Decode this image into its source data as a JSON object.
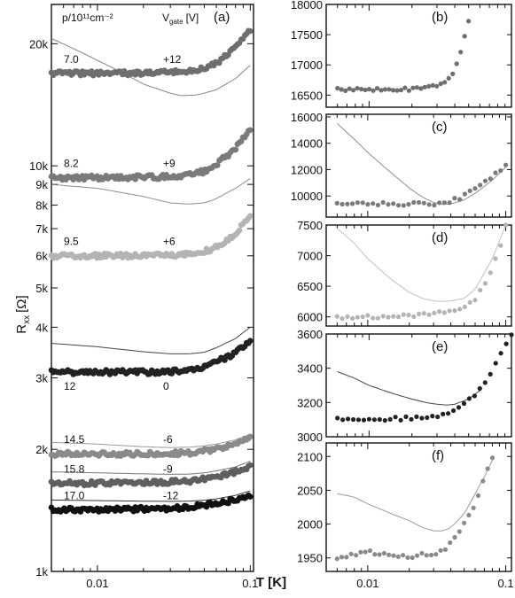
{
  "figure": {
    "ylabel": "R",
    "ylabel_sub": "xx",
    "ylabel_unit": "[Ω]",
    "xlabel": "T [K]",
    "header_density": "p/10¹¹cm⁻²",
    "header_voltage": "V",
    "header_voltage_sub": "gate",
    "header_voltage_unit": "[V]"
  },
  "chart_data": [
    {
      "panel": "(a)",
      "type": "scatter",
      "xscale": "log",
      "yscale": "log",
      "xlim": [
        0.005,
        0.105
      ],
      "ylim": [
        1000,
        25000
      ],
      "x_ticks": [
        0.01,
        0.1
      ],
      "x_tick_labels": [
        "0.01",
        "0.1"
      ],
      "y_ticks": [
        1000,
        2000,
        3000,
        4000,
        5000,
        6000,
        7000,
        8000,
        9000,
        10000,
        20000
      ],
      "y_tick_labels": [
        "1k",
        "2k",
        "3k",
        "4k",
        "5k",
        "6k",
        "7k",
        "8k",
        "9k",
        "10k",
        "20k"
      ],
      "series": [
        {
          "density": "7.0",
          "vgate": "+12",
          "color": "#6e6e6e",
          "measured": {
            "x": [
              0.005,
              0.01,
              0.02,
              0.03,
              0.04,
              0.05,
              0.06,
              0.08,
              0.1
            ],
            "y": [
              16900,
              16900,
              16950,
              17000,
              17100,
              17400,
              17900,
              19500,
              21500
            ]
          },
          "theory": {
            "x": [
              0.005,
              0.01,
              0.02,
              0.03,
              0.035,
              0.045,
              0.06,
              0.08,
              0.1
            ],
            "y": [
              20600,
              18200,
              15900,
              15100,
              14900,
              14950,
              15400,
              16400,
              17700
            ]
          }
        },
        {
          "density": "8.2",
          "vgate": "+9",
          "color": "#7a7a7a",
          "measured": {
            "x": [
              0.005,
              0.01,
              0.02,
              0.03,
              0.04,
              0.05,
              0.06,
              0.08,
              0.1
            ],
            "y": [
              9350,
              9350,
              9380,
              9400,
              9500,
              9700,
              10100,
              11000,
              12400
            ]
          },
          "theory": {
            "x": [
              0.005,
              0.01,
              0.02,
              0.03,
              0.04,
              0.05,
              0.06,
              0.08,
              0.1
            ],
            "y": [
              9000,
              8800,
              8400,
              8100,
              8050,
              8100,
              8300,
              8800,
              9300
            ]
          }
        },
        {
          "density": "9.5",
          "vgate": "+6",
          "color": "#b4b4b4",
          "measured": {
            "x": [
              0.005,
              0.01,
              0.02,
              0.03,
              0.04,
              0.05,
              0.06,
              0.08,
              0.1
            ],
            "y": [
              6000,
              6000,
              6010,
              6030,
              6060,
              6150,
              6300,
              6800,
              7500
            ]
          }
        },
        {
          "density": "12",
          "vgate": "0",
          "color": "#222222",
          "measured": {
            "x": [
              0.005,
              0.01,
              0.02,
              0.03,
              0.04,
              0.05,
              0.06,
              0.08,
              0.1
            ],
            "y": [
              3100,
              3100,
              3100,
              3110,
              3150,
              3200,
              3280,
              3450,
              3700
            ]
          },
          "theory": {
            "x": [
              0.005,
              0.01,
              0.02,
              0.03,
              0.04,
              0.05,
              0.06,
              0.08,
              0.1
            ],
            "y": [
              3650,
              3580,
              3480,
              3440,
              3440,
              3470,
              3560,
              3750,
              4000
            ]
          }
        },
        {
          "density": "14.5",
          "vgate": "-6",
          "color": "#8a8a8a",
          "measured": {
            "x": [
              0.005,
              0.01,
              0.02,
              0.03,
              0.04,
              0.05,
              0.06,
              0.08,
              0.1
            ],
            "y": [
              1950,
              1950,
              1950,
              1955,
              1960,
              1980,
              2000,
              2060,
              2130
            ]
          },
          "theory": {
            "x": [
              0.005,
              0.01,
              0.02,
              0.03,
              0.04,
              0.05,
              0.06,
              0.08,
              0.1
            ],
            "y": [
              2080,
              2060,
              2030,
              2020,
              2025,
              2040,
              2060,
              2110,
              2180
            ]
          }
        },
        {
          "density": "15.8",
          "vgate": "-9",
          "color": "#5f5f5f",
          "measured": {
            "x": [
              0.005,
              0.01,
              0.02,
              0.03,
              0.04,
              0.05,
              0.06,
              0.08,
              0.1
            ],
            "y": [
              1650,
              1650,
              1655,
              1660,
              1670,
              1690,
              1710,
              1760,
              1820
            ]
          },
          "theory": {
            "x": [
              0.005,
              0.01,
              0.02,
              0.03,
              0.04,
              0.05,
              0.06,
              0.08,
              0.1
            ],
            "y": [
              1760,
              1750,
              1740,
              1735,
              1738,
              1750,
              1770,
              1810,
              1870
            ]
          }
        },
        {
          "density": "17.0",
          "vgate": "-12",
          "color": "#111111",
          "measured": {
            "x": [
              0.005,
              0.01,
              0.02,
              0.03,
              0.04,
              0.05,
              0.06,
              0.08,
              0.1
            ],
            "y": [
              1420,
              1420,
              1425,
              1430,
              1440,
              1455,
              1470,
              1500,
              1540
            ]
          },
          "theory": {
            "x": [
              0.005,
              0.01,
              0.02,
              0.03,
              0.04,
              0.05,
              0.06,
              0.08,
              0.1
            ],
            "y": [
              1500,
              1495,
              1490,
              1488,
              1490,
              1498,
              1510,
              1540,
              1580
            ]
          }
        }
      ]
    },
    {
      "panel": "(b)",
      "type": "scatter",
      "xscale": "log",
      "xlim": [
        0.005,
        0.1
      ],
      "ylim": [
        16300,
        18000
      ],
      "y_ticks": [
        16500,
        17000,
        17500,
        18000
      ],
      "y_tick_labels": [
        "16500",
        "17000",
        "17500",
        "18000"
      ],
      "measured": {
        "color": "#6e6e6e",
        "x": [
          0.006,
          0.008,
          0.01,
          0.015,
          0.02,
          0.025,
          0.03,
          0.035,
          0.04,
          0.045,
          0.05
        ],
        "y": [
          16600,
          16590,
          16600,
          16580,
          16600,
          16620,
          16650,
          16700,
          16900,
          17300,
          17750
        ]
      }
    },
    {
      "panel": "(c)",
      "type": "scatter",
      "xscale": "log",
      "xlim": [
        0.005,
        0.11
      ],
      "ylim": [
        8400,
        16200
      ],
      "y_ticks": [
        10000,
        12000,
        14000,
        16000
      ],
      "y_tick_labels": [
        "10000",
        "12000",
        "14000",
        "16000"
      ],
      "measured": {
        "color": "#7a7a7a",
        "x": [
          0.006,
          0.008,
          0.01,
          0.015,
          0.02,
          0.03,
          0.04,
          0.05,
          0.06,
          0.08,
          0.1
        ],
        "y": [
          9400,
          9400,
          9400,
          9400,
          9400,
          9420,
          9600,
          10000,
          10500,
          11500,
          12400
        ]
      },
      "theory": {
        "x": [
          0.006,
          0.008,
          0.01,
          0.015,
          0.02,
          0.025,
          0.03,
          0.035,
          0.04,
          0.05,
          0.06,
          0.08,
          0.1
        ],
        "y": [
          15500,
          14300,
          13300,
          11700,
          10600,
          9900,
          9500,
          9350,
          9400,
          9700,
          10200,
          11200,
          12200
        ]
      }
    },
    {
      "panel": "(d)",
      "type": "scatter",
      "xscale": "log",
      "xlim": [
        0.005,
        0.11
      ],
      "ylim": [
        5850,
        7500
      ],
      "y_ticks": [
        6000,
        6500,
        7000,
        7500
      ],
      "y_tick_labels": [
        "6000",
        "6500",
        "7000",
        "7500"
      ],
      "measured": {
        "color": "#b4b4b4",
        "x": [
          0.006,
          0.008,
          0.01,
          0.015,
          0.02,
          0.025,
          0.03,
          0.035,
          0.04,
          0.05,
          0.06,
          0.07,
          0.08,
          0.09,
          0.1
        ],
        "y": [
          6000,
          6000,
          6000,
          6010,
          6020,
          6040,
          6060,
          6080,
          6100,
          6170,
          6300,
          6500,
          6800,
          7100,
          7500
        ]
      },
      "theory": {
        "x": [
          0.006,
          0.008,
          0.01,
          0.015,
          0.02,
          0.025,
          0.03,
          0.035,
          0.04,
          0.05,
          0.06,
          0.08,
          0.1
        ],
        "y": [
          7450,
          7200,
          6950,
          6600,
          6400,
          6300,
          6260,
          6250,
          6260,
          6300,
          6450,
          6950,
          7500
        ]
      }
    },
    {
      "panel": "(e)",
      "type": "scatter",
      "xscale": "log",
      "xlim": [
        0.005,
        0.1
      ],
      "ylim": [
        3000,
        3600
      ],
      "y_ticks": [
        3000,
        3200,
        3400,
        3600
      ],
      "y_tick_labels": [
        "3000",
        "3200",
        "3400",
        "3600"
      ],
      "measured": {
        "color": "#222222",
        "x": [
          0.006,
          0.008,
          0.01,
          0.015,
          0.02,
          0.025,
          0.03,
          0.035,
          0.04,
          0.05,
          0.06,
          0.07,
          0.08,
          0.09,
          0.1
        ],
        "y": [
          3100,
          3100,
          3100,
          3105,
          3110,
          3115,
          3125,
          3140,
          3160,
          3210,
          3280,
          3360,
          3450,
          3520,
          3600
        ]
      },
      "theory": {
        "x": [
          0.006,
          0.008,
          0.01,
          0.015,
          0.02,
          0.025,
          0.03,
          0.035,
          0.04,
          0.05,
          0.06
        ],
        "y": [
          3380,
          3340,
          3300,
          3250,
          3220,
          3200,
          3190,
          3185,
          3190,
          3220,
          3270
        ]
      }
    },
    {
      "panel": "(f)",
      "type": "scatter",
      "xscale": "log",
      "xlim": [
        0.005,
        0.11
      ],
      "ylim": [
        1930,
        2120
      ],
      "y_ticks": [
        1950,
        2000,
        2050,
        2100
      ],
      "y_tick_labels": [
        "1950",
        "2000",
        "2050",
        "2100"
      ],
      "x_ticks": [
        0.01,
        0.1
      ],
      "x_tick_labels": [
        "0.01",
        "0.1"
      ],
      "measured": {
        "color": "#8a8a8a",
        "x": [
          0.006,
          0.008,
          0.01,
          0.012,
          0.015,
          0.02,
          0.025,
          0.03,
          0.035,
          0.04,
          0.05,
          0.06,
          0.07,
          0.08
        ],
        "y": [
          1950,
          1955,
          1960,
          1955,
          1955,
          1952,
          1955,
          1955,
          1960,
          1975,
          2000,
          2030,
          2070,
          2100
        ]
      },
      "theory": {
        "x": [
          0.006,
          0.008,
          0.01,
          0.015,
          0.02,
          0.025,
          0.03,
          0.035,
          0.04,
          0.05,
          0.06,
          0.07,
          0.08
        ],
        "y": [
          2045,
          2040,
          2030,
          2015,
          2005,
          1995,
          1990,
          1990,
          1995,
          2015,
          2045,
          2070,
          2095
        ]
      }
    }
  ]
}
